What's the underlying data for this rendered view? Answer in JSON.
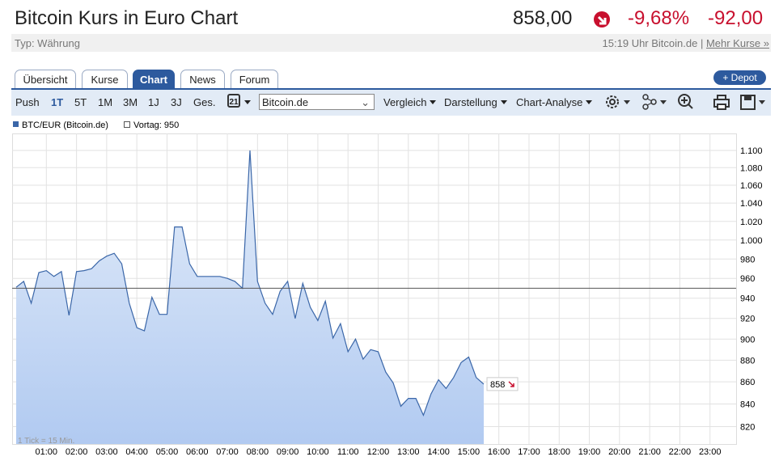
{
  "header": {
    "title": "Bitcoin Kurs in Euro Chart",
    "price": "858,00",
    "change_pct": "-9,68%",
    "change_abs": "-92,00",
    "type": "Typ: Währung",
    "time_source": "15:19 Uhr Bitcoin.de",
    "more_link": "Mehr Kurse »"
  },
  "tabs": [
    "Übersicht",
    "Kurse",
    "Chart",
    "News",
    "Forum"
  ],
  "depot_button": "+ Depot",
  "toolbar": {
    "periods": [
      "Push",
      "1T",
      "5T",
      "1M",
      "3M",
      "1J",
      "3J",
      "Ges."
    ],
    "calendar_day": "21",
    "source": "Bitcoin.de",
    "menus": [
      "Vergleich",
      "Darstellung",
      "Chart-Analyse"
    ]
  },
  "chart_data": {
    "type": "area",
    "series": [
      {
        "name": "BTC/EUR (Bitcoin.de)",
        "color": "#3a66a8",
        "values": [
          951,
          957,
          935,
          966,
          968,
          962,
          967,
          923,
          967,
          968,
          970,
          978,
          983,
          986,
          975,
          935,
          911,
          908,
          941,
          924,
          924,
          1014,
          1014,
          975,
          962,
          962,
          962,
          962,
          960,
          957,
          950,
          1100,
          957,
          935,
          924,
          947,
          957,
          920,
          955,
          931,
          918,
          937,
          901,
          915,
          888,
          900,
          881,
          890,
          888,
          869,
          859,
          838,
          845,
          845,
          830,
          849,
          862,
          854,
          864,
          878,
          883,
          864,
          858
        ]
      }
    ],
    "x": [
      0,
      0.25,
      0.5,
      0.75,
      1,
      1.25,
      1.5,
      1.75,
      2,
      2.25,
      2.5,
      2.75,
      3,
      3.25,
      3.5,
      3.75,
      4,
      4.25,
      4.5,
      4.75,
      5,
      5.25,
      5.5,
      5.75,
      6,
      6.25,
      6.5,
      6.75,
      7,
      7.25,
      7.5,
      7.75,
      8,
      8.25,
      8.5,
      8.75,
      9,
      9.25,
      9.5,
      9.75,
      10,
      10.25,
      10.5,
      10.75,
      11,
      11.25,
      11.5,
      11.75,
      12,
      12.25,
      12.5,
      12.75,
      13,
      13.25,
      13.5,
      13.75,
      14,
      14.25,
      14.5,
      14.75,
      15,
      15.25,
      15.5
    ],
    "xlim": [
      0,
      24
    ],
    "xticks": [
      {
        "value": 1,
        "label": "01:00"
      },
      {
        "value": 2,
        "label": "02:00"
      },
      {
        "value": 3,
        "label": "03:00"
      },
      {
        "value": 4,
        "label": "04:00"
      },
      {
        "value": 5,
        "label": "05:00"
      },
      {
        "value": 6,
        "label": "06:00"
      },
      {
        "value": 7,
        "label": "07:00"
      },
      {
        "value": 8,
        "label": "08:00"
      },
      {
        "value": 9,
        "label": "09:00"
      },
      {
        "value": 10,
        "label": "10:00"
      },
      {
        "value": 11,
        "label": "11:00"
      },
      {
        "value": 12,
        "label": "12:00"
      },
      {
        "value": 13,
        "label": "13:00"
      },
      {
        "value": 14,
        "label": "14:00"
      },
      {
        "value": 15,
        "label": "15:00"
      },
      {
        "value": 16,
        "label": "16:00"
      },
      {
        "value": 17,
        "label": "17:00"
      },
      {
        "value": 18,
        "label": "18:00"
      },
      {
        "value": 19,
        "label": "19:00"
      },
      {
        "value": 20,
        "label": "20:00"
      },
      {
        "value": 21,
        "label": "21:00"
      },
      {
        "value": 22,
        "label": "22:00"
      },
      {
        "value": 23,
        "label": "23:00"
      }
    ],
    "ylim": [
      805,
      1120
    ],
    "yticks": [
      820,
      840,
      860,
      880,
      900,
      920,
      940,
      960,
      980,
      {
        "value": 1000,
        "label": "1.000"
      },
      {
        "value": 1020,
        "label": "1.020"
      },
      {
        "value": 1040,
        "label": "1.040"
      },
      {
        "value": 1060,
        "label": "1.060"
      },
      {
        "value": 1080,
        "label": "1.080"
      },
      {
        "value": 1100,
        "label": "1.100"
      }
    ],
    "log_y": true,
    "grid": true,
    "reference": {
      "label": "Vortag: 950",
      "value": 950
    },
    "tick_note": "1 Tick = 15 Min.",
    "last_value": 858
  }
}
